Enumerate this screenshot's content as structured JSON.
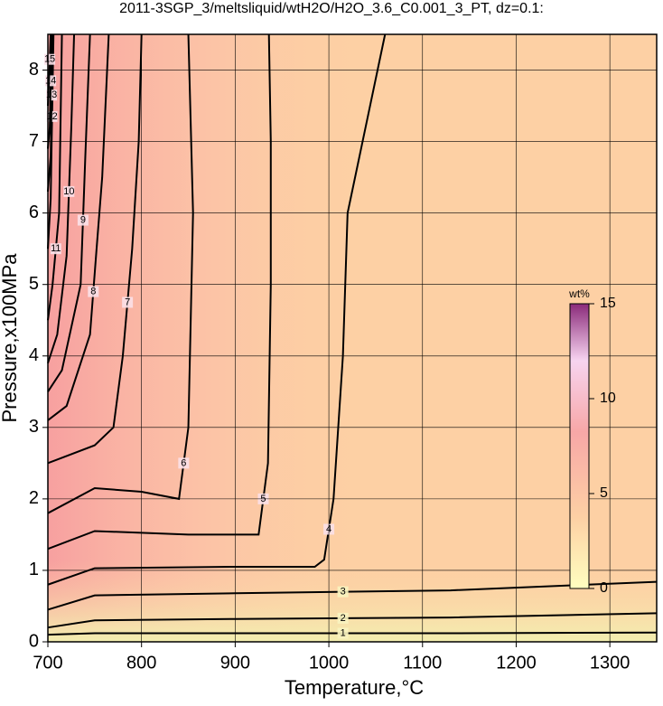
{
  "chart_data": {
    "type": "contour",
    "title": "2011-3SGP_3/meltsliquid/wtH2O/H2O_3.6_C0.001_3_PT, dz=0.1:",
    "x_label": "Temperature,°C",
    "y_label": "Pressure,x100MPa",
    "xlim": [
      700,
      1350
    ],
    "ylim": [
      0,
      8.5
    ],
    "xticks": [
      700,
      800,
      900,
      1000,
      1100,
      1200,
      1300
    ],
    "yticks": [
      0,
      1,
      2,
      3,
      4,
      5,
      6,
      7,
      8
    ],
    "grid": true,
    "line_color": "#000000",
    "contours": [
      {
        "level": 1,
        "x": [
          700,
          750,
          900,
          1130,
          1350
        ],
        "y": [
          0.1,
          0.12,
          0.12,
          0.12,
          0.13
        ]
      },
      {
        "level": 2,
        "x": [
          700,
          750,
          900,
          1130,
          1350
        ],
        "y": [
          0.2,
          0.3,
          0.32,
          0.34,
          0.4
        ]
      },
      {
        "level": 3,
        "x": [
          700,
          750,
          900,
          1130,
          1350
        ],
        "y": [
          0.45,
          0.65,
          0.68,
          0.72,
          0.84
        ]
      },
      {
        "level": 4,
        "x": [
          700,
          750,
          900,
          985,
          995,
          1005,
          1015,
          1020,
          1060
        ],
        "y": [
          0.8,
          1.03,
          1.05,
          1.05,
          1.15,
          2.0,
          4.0,
          6.0,
          8.5
        ]
      },
      {
        "level": 5,
        "x": [
          700,
          750,
          850,
          925,
          935,
          938,
          938,
          936
        ],
        "y": [
          1.3,
          1.55,
          1.5,
          1.5,
          2.5,
          5.0,
          7.0,
          8.5
        ]
      },
      {
        "level": 6,
        "x": [
          700,
          750,
          800,
          840,
          850,
          855,
          852,
          850
        ],
        "y": [
          1.8,
          2.15,
          2.1,
          2.0,
          3.0,
          6.0,
          7.5,
          8.5
        ]
      },
      {
        "level": 7,
        "x": [
          700,
          750,
          770,
          780,
          790,
          797,
          800
        ],
        "y": [
          2.5,
          2.75,
          3.0,
          4.0,
          5.5,
          7.0,
          8.5
        ]
      },
      {
        "level": 8,
        "x": [
          700,
          720,
          745,
          752,
          758,
          765
        ],
        "y": [
          3.1,
          3.3,
          4.3,
          5.5,
          6.5,
          8.5
        ]
      },
      {
        "level": 9,
        "x": [
          700,
          715,
          735,
          740,
          745
        ],
        "y": [
          3.5,
          3.8,
          5.0,
          6.8,
          8.5
        ]
      },
      {
        "level": 10,
        "x": [
          700,
          710,
          720,
          725,
          728
        ],
        "y": [
          3.9,
          4.3,
          5.4,
          7.2,
          8.5
        ]
      },
      {
        "level": 11,
        "x": [
          700,
          705,
          712,
          715
        ],
        "y": [
          4.5,
          5.0,
          6.0,
          8.5
        ]
      },
      {
        "level": 12,
        "x": [
          700,
          703,
          706
        ],
        "y": [
          5.5,
          6.2,
          8.5
        ]
      },
      {
        "level": 13,
        "x": [
          700,
          703,
          705
        ],
        "y": [
          6.3,
          6.8,
          8.5
        ]
      },
      {
        "level": 14,
        "x": [
          700,
          702,
          704
        ],
        "y": [
          6.9,
          7.2,
          8.5
        ]
      },
      {
        "level": 15,
        "x": [
          700,
          701,
          703
        ],
        "y": [
          7.5,
          7.8,
          8.5
        ]
      }
    ],
    "colorbar": {
      "label": "wt%",
      "lim": [
        0,
        15
      ],
      "ticks": [
        0,
        5,
        10,
        15
      ]
    }
  }
}
